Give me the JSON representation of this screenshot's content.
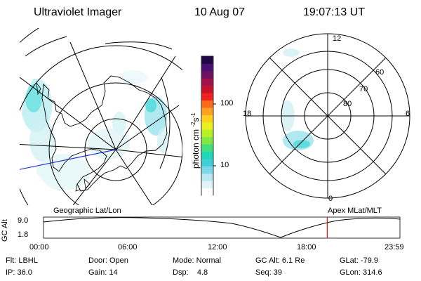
{
  "header": {
    "instrument": "Ultraviolet Imager",
    "date": "10 Aug 07",
    "time": "19:07:13 UT"
  },
  "maps": {
    "geo_label": "Geographic Lat/Lon",
    "mag_label": "Apex MLat/MLT",
    "mlt_labels": {
      "top": "12",
      "left": "18",
      "right": "6",
      "bottom": "0"
    },
    "mlat_labels": [
      "60",
      "70",
      "80"
    ]
  },
  "colorbar": {
    "unit": "photon cm",
    "sup1": "-2",
    "s": "s",
    "sup2": "-1",
    "ticks": [
      "100",
      "10"
    ],
    "colors": [
      "#ffffff",
      "#e0f4f8",
      "#b8e8f0",
      "#7ad8e8",
      "#3cd0d8",
      "#20d8b8",
      "#40e080",
      "#80e840",
      "#b8f028",
      "#e8f020",
      "#ffd020",
      "#ffa020",
      "#ff6a18",
      "#f02020",
      "#c8102a",
      "#a0104a",
      "#701060",
      "#481070",
      "#200848"
    ]
  },
  "altitude_plot": {
    "y_label": "GC Alt",
    "y_ticks": [
      "9.0",
      "1.8"
    ],
    "x_ticks": [
      "00:00",
      "06:00",
      "12:00",
      "18:00",
      "23:59"
    ],
    "current_time_fraction": 0.796
  },
  "info": {
    "row1": [
      {
        "label": "Flt:",
        "value": "LBHL"
      },
      {
        "label": "Door:",
        "value": "Open"
      },
      {
        "label": "Mode:",
        "value": "Normal"
      },
      {
        "label": "GC Alt:",
        "value": "6.1 Re"
      },
      {
        "label": "GLat:",
        "value": "-79.9"
      }
    ],
    "row2": [
      {
        "label": "IP:",
        "value": "36.0"
      },
      {
        "label": "Gain:",
        "value": "14"
      },
      {
        "label": "Dsp:",
        "value": "4.8"
      },
      {
        "label": "Seq:",
        "value": "39"
      },
      {
        "label": "GLon:",
        "value": "314.6"
      }
    ]
  },
  "colors": {
    "red_marker": "#e01010",
    "aurora": "#40d8d8",
    "lon_line": "#2030d0"
  }
}
